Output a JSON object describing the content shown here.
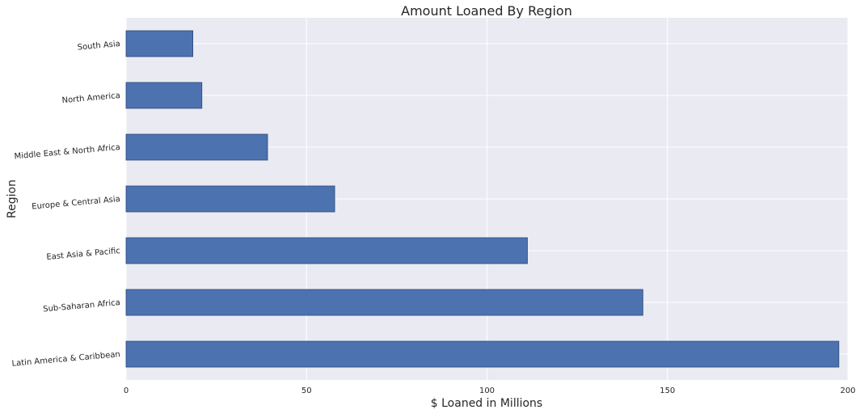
{
  "chart_data": {
    "type": "bar",
    "orientation": "horizontal",
    "title": "Amount Loaned By Region",
    "xlabel": "$ Loaned in Millions",
    "ylabel": "Region",
    "categories": [
      "Latin America & Caribbean",
      "Sub-Saharan Africa",
      "East Asia & Pacific",
      "Europe & Central Asia",
      "Middle East & North Africa",
      "North America",
      "South Asia"
    ],
    "values": [
      197.5,
      143.2,
      111.2,
      57.8,
      39.2,
      21.0,
      18.5
    ],
    "xlim": [
      0,
      200
    ],
    "xticks": [
      0,
      50,
      100,
      150,
      200
    ],
    "grid": true,
    "colors": {
      "bar": "#4c72b0",
      "bar_edge": "#2b4a78",
      "plot_background": "#eaeaf2",
      "grid": "#ffffff",
      "text": "#262626"
    }
  }
}
